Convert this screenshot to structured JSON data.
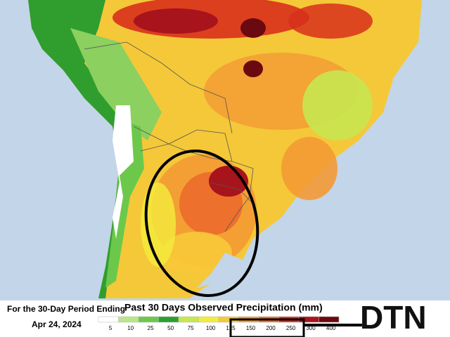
{
  "caption": {
    "period": "For the 30-Day Period Ending",
    "date": "Apr 24, 2024"
  },
  "title": "Past 30 Days Observed Precipitation (mm)",
  "legend": {
    "items": [
      {
        "label": "5",
        "color": "#ffffff"
      },
      {
        "label": "10",
        "color": "#b8e68a"
      },
      {
        "label": "25",
        "color": "#6cc84a"
      },
      {
        "label": "50",
        "color": "#2f9e2f"
      },
      {
        "label": "75",
        "color": "#c8e650"
      },
      {
        "label": "100",
        "color": "#f4ec3c"
      },
      {
        "label": "125",
        "color": "#f8c838"
      },
      {
        "label": "150",
        "color": "#f49a34"
      },
      {
        "label": "200",
        "color": "#ec6a2c"
      },
      {
        "label": "250",
        "color": "#d8301c"
      },
      {
        "label": "300",
        "color": "#a8141c"
      },
      {
        "label": "400",
        "color": "#6a0a10"
      }
    ]
  },
  "logo": "DTN"
}
